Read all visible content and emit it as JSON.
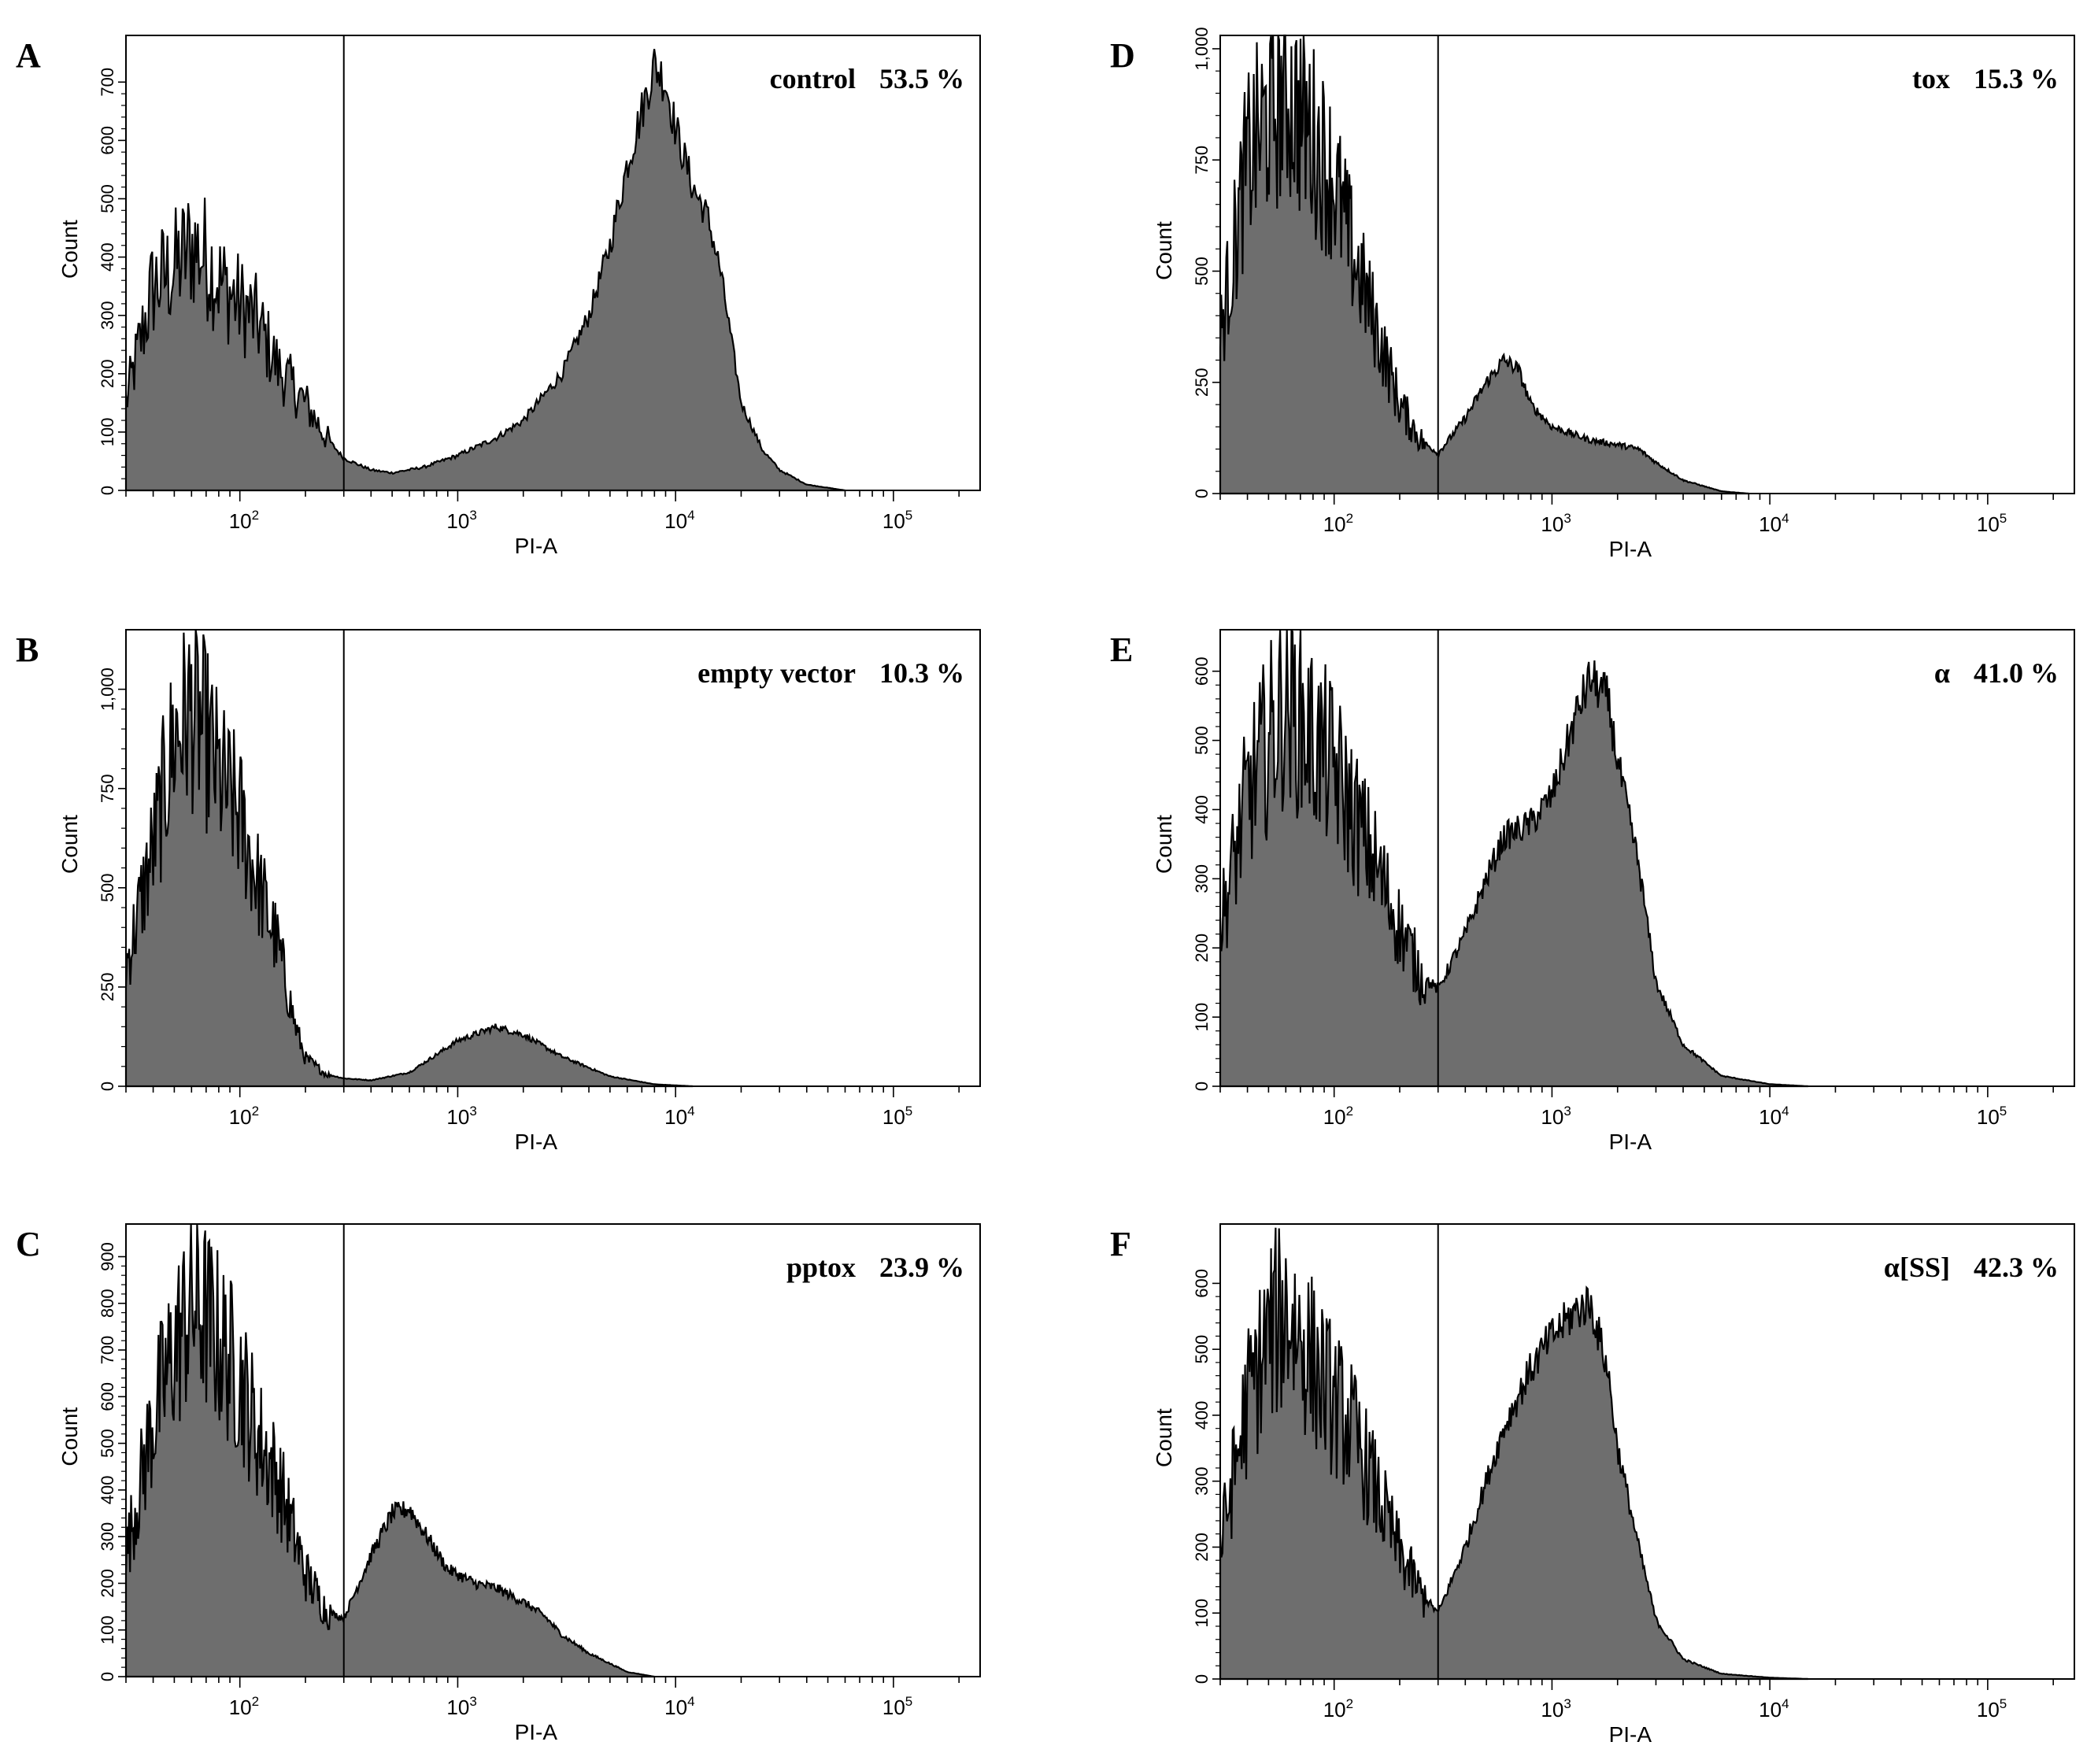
{
  "chart_data": [
    {
      "type": "area",
      "panel": "A",
      "label": "control",
      "percent": "53.5 %",
      "xlabel": "PI-A",
      "ylabel": "Count",
      "x_scale": "log",
      "xlim": [
        30,
        250000
      ],
      "ylim": [
        0,
        780
      ],
      "yticks": [
        0,
        100,
        200,
        300,
        400,
        500,
        600,
        700
      ],
      "ytick_labels": [
        "0",
        "100",
        "200",
        "300",
        "400",
        "500",
        "600",
        "700"
      ],
      "xticks": [
        {
          "base": "10",
          "exp": "2",
          "value": 100
        },
        {
          "base": "10",
          "exp": "3",
          "value": 1000
        },
        {
          "base": "10",
          "exp": "4",
          "value": 10000
        },
        {
          "base": "10",
          "exp": "5",
          "value": 100000
        }
      ],
      "gate": 300,
      "x": [
        30,
        40,
        50,
        60,
        70,
        80,
        100,
        120,
        150,
        200,
        250,
        300,
        400,
        500,
        700,
        1000,
        1500,
        2000,
        3000,
        4000,
        5000,
        6000,
        7000,
        8000,
        9000,
        10000,
        12000,
        14000,
        16000,
        18000,
        20000,
        25000,
        30000,
        40000,
        60000
      ],
      "y": [
        150,
        350,
        380,
        420,
        400,
        360,
        320,
        290,
        210,
        150,
        90,
        55,
        35,
        30,
        40,
        60,
        90,
        120,
        200,
        300,
        420,
        560,
        650,
        730,
        700,
        620,
        520,
        470,
        380,
        260,
        150,
        70,
        35,
        10,
        0
      ]
    },
    {
      "type": "area",
      "panel": "B",
      "label": "empty vector",
      "percent": "10.3 %",
      "xlabel": "PI-A",
      "ylabel": "Count",
      "x_scale": "log",
      "xlim": [
        30,
        250000
      ],
      "ylim": [
        0,
        1150
      ],
      "yticks": [
        0,
        250,
        500,
        750,
        1000
      ],
      "ytick_labels": [
        "0",
        "250",
        "500",
        "750",
        "1,000"
      ],
      "xticks": [
        {
          "base": "10",
          "exp": "2",
          "value": 100
        },
        {
          "base": "10",
          "exp": "3",
          "value": 1000
        },
        {
          "base": "10",
          "exp": "4",
          "value": 10000
        },
        {
          "base": "10",
          "exp": "5",
          "value": 100000
        }
      ],
      "gate": 300,
      "x": [
        30,
        40,
        50,
        60,
        70,
        80,
        100,
        120,
        150,
        180,
        200,
        250,
        300,
        400,
        600,
        800,
        1000,
        1500,
        2000,
        3000,
        5000,
        8000,
        12000
      ],
      "y": [
        300,
        600,
        880,
        950,
        880,
        780,
        680,
        520,
        350,
        150,
        70,
        30,
        20,
        15,
        35,
        80,
        115,
        150,
        130,
        75,
        25,
        5,
        0
      ]
    },
    {
      "type": "area",
      "panel": "C",
      "label": "pptox",
      "percent": "23.9 %",
      "xlabel": "PI-A",
      "ylabel": "Count",
      "x_scale": "log",
      "xlim": [
        30,
        250000
      ],
      "ylim": [
        0,
        970
      ],
      "yticks": [
        0,
        100,
        200,
        300,
        400,
        500,
        600,
        700,
        800,
        900
      ],
      "ytick_labels": [
        "0",
        "100",
        "200",
        "300",
        "400",
        "500",
        "600",
        "700",
        "800",
        "900"
      ],
      "xticks": [
        {
          "base": "10",
          "exp": "2",
          "value": 100
        },
        {
          "base": "10",
          "exp": "3",
          "value": 1000
        },
        {
          "base": "10",
          "exp": "4",
          "value": 10000
        },
        {
          "base": "10",
          "exp": "5",
          "value": 100000
        }
      ],
      "gate": 300,
      "x": [
        30,
        40,
        50,
        60,
        70,
        80,
        100,
        120,
        150,
        200,
        250,
        300,
        400,
        500,
        600,
        700,
        900,
        1200,
        1500,
        2000,
        2500,
        3000,
        4000,
        6000,
        8000
      ],
      "y": [
        260,
        550,
        700,
        800,
        770,
        720,
        640,
        520,
        420,
        220,
        140,
        125,
        260,
        350,
        360,
        310,
        230,
        200,
        190,
        160,
        130,
        90,
        50,
        10,
        0
      ]
    },
    {
      "type": "area",
      "panel": "D",
      "label": "tox",
      "percent": "15.3 %",
      "xlabel": "PI-A",
      "ylabel": "Count",
      "x_scale": "log",
      "xlim": [
        30,
        250000
      ],
      "ylim": [
        0,
        1030
      ],
      "yticks": [
        0,
        250,
        500,
        750,
        1000
      ],
      "ytick_labels": [
        "0",
        "250",
        "500",
        "750",
        "1,000"
      ],
      "xticks": [
        {
          "base": "10",
          "exp": "2",
          "value": 100
        },
        {
          "base": "10",
          "exp": "3",
          "value": 1000
        },
        {
          "base": "10",
          "exp": "4",
          "value": 10000
        },
        {
          "base": "10",
          "exp": "5",
          "value": 100000
        }
      ],
      "gate": 300,
      "x": [
        30,
        40,
        50,
        60,
        70,
        80,
        100,
        120,
        150,
        200,
        250,
        300,
        400,
        500,
        600,
        700,
        800,
        1000,
        1500,
        2000,
        2500,
        3000,
        4000,
        6000,
        8000
      ],
      "y": [
        350,
        750,
        850,
        900,
        850,
        800,
        700,
        550,
        400,
        200,
        120,
        90,
        170,
        250,
        300,
        280,
        200,
        150,
        120,
        110,
        100,
        70,
        30,
        5,
        0
      ]
    },
    {
      "type": "area",
      "panel": "E",
      "label": "α",
      "percent": "41.0 %",
      "xlabel": "PI-A",
      "ylabel": "Count",
      "x_scale": "log",
      "xlim": [
        30,
        250000
      ],
      "ylim": [
        0,
        660
      ],
      "yticks": [
        0,
        100,
        200,
        300,
        400,
        500,
        600
      ],
      "ytick_labels": [
        "0",
        "100",
        "200",
        "300",
        "400",
        "500",
        "600"
      ],
      "xticks": [
        {
          "base": "10",
          "exp": "2",
          "value": 100
        },
        {
          "base": "10",
          "exp": "3",
          "value": 1000
        },
        {
          "base": "10",
          "exp": "4",
          "value": 10000
        },
        {
          "base": "10",
          "exp": "5",
          "value": 100000
        }
      ],
      "gate": 300,
      "x": [
        30,
        40,
        50,
        60,
        70,
        80,
        100,
        120,
        150,
        200,
        250,
        300,
        400,
        500,
        600,
        800,
        1000,
        1300,
        1500,
        1800,
        2000,
        2500,
        3000,
        4000,
        6000,
        10000,
        15000
      ],
      "y": [
        230,
        420,
        500,
        560,
        530,
        500,
        460,
        400,
        330,
        230,
        160,
        140,
        220,
        300,
        360,
        380,
        420,
        540,
        590,
        560,
        470,
        320,
        150,
        60,
        15,
        3,
        0
      ]
    },
    {
      "type": "area",
      "panel": "F",
      "label": "α[SS]",
      "percent": "42.3 %",
      "xlabel": "PI-A",
      "ylabel": "Count",
      "x_scale": "log",
      "xlim": [
        30,
        250000
      ],
      "ylim": [
        0,
        690
      ],
      "yticks": [
        0,
        100,
        200,
        300,
        400,
        500,
        600
      ],
      "ytick_labels": [
        "0",
        "100",
        "200",
        "300",
        "400",
        "500",
        "600"
      ],
      "xticks": [
        {
          "base": "10",
          "exp": "2",
          "value": 100
        },
        {
          "base": "10",
          "exp": "3",
          "value": 1000
        },
        {
          "base": "10",
          "exp": "4",
          "value": 10000
        },
        {
          "base": "10",
          "exp": "5",
          "value": 100000
        }
      ],
      "gate": 300,
      "x": [
        30,
        40,
        50,
        60,
        70,
        80,
        100,
        120,
        150,
        200,
        250,
        300,
        400,
        500,
        600,
        800,
        1000,
        1300,
        1500,
        1800,
        2000,
        2500,
        3000,
        4000,
        6000,
        10000,
        15000
      ],
      "y": [
        200,
        420,
        520,
        560,
        520,
        480,
        420,
        380,
        300,
        190,
        130,
        100,
        200,
        300,
        380,
        470,
        520,
        560,
        570,
        470,
        350,
        200,
        90,
        30,
        8,
        2,
        0
      ]
    }
  ]
}
